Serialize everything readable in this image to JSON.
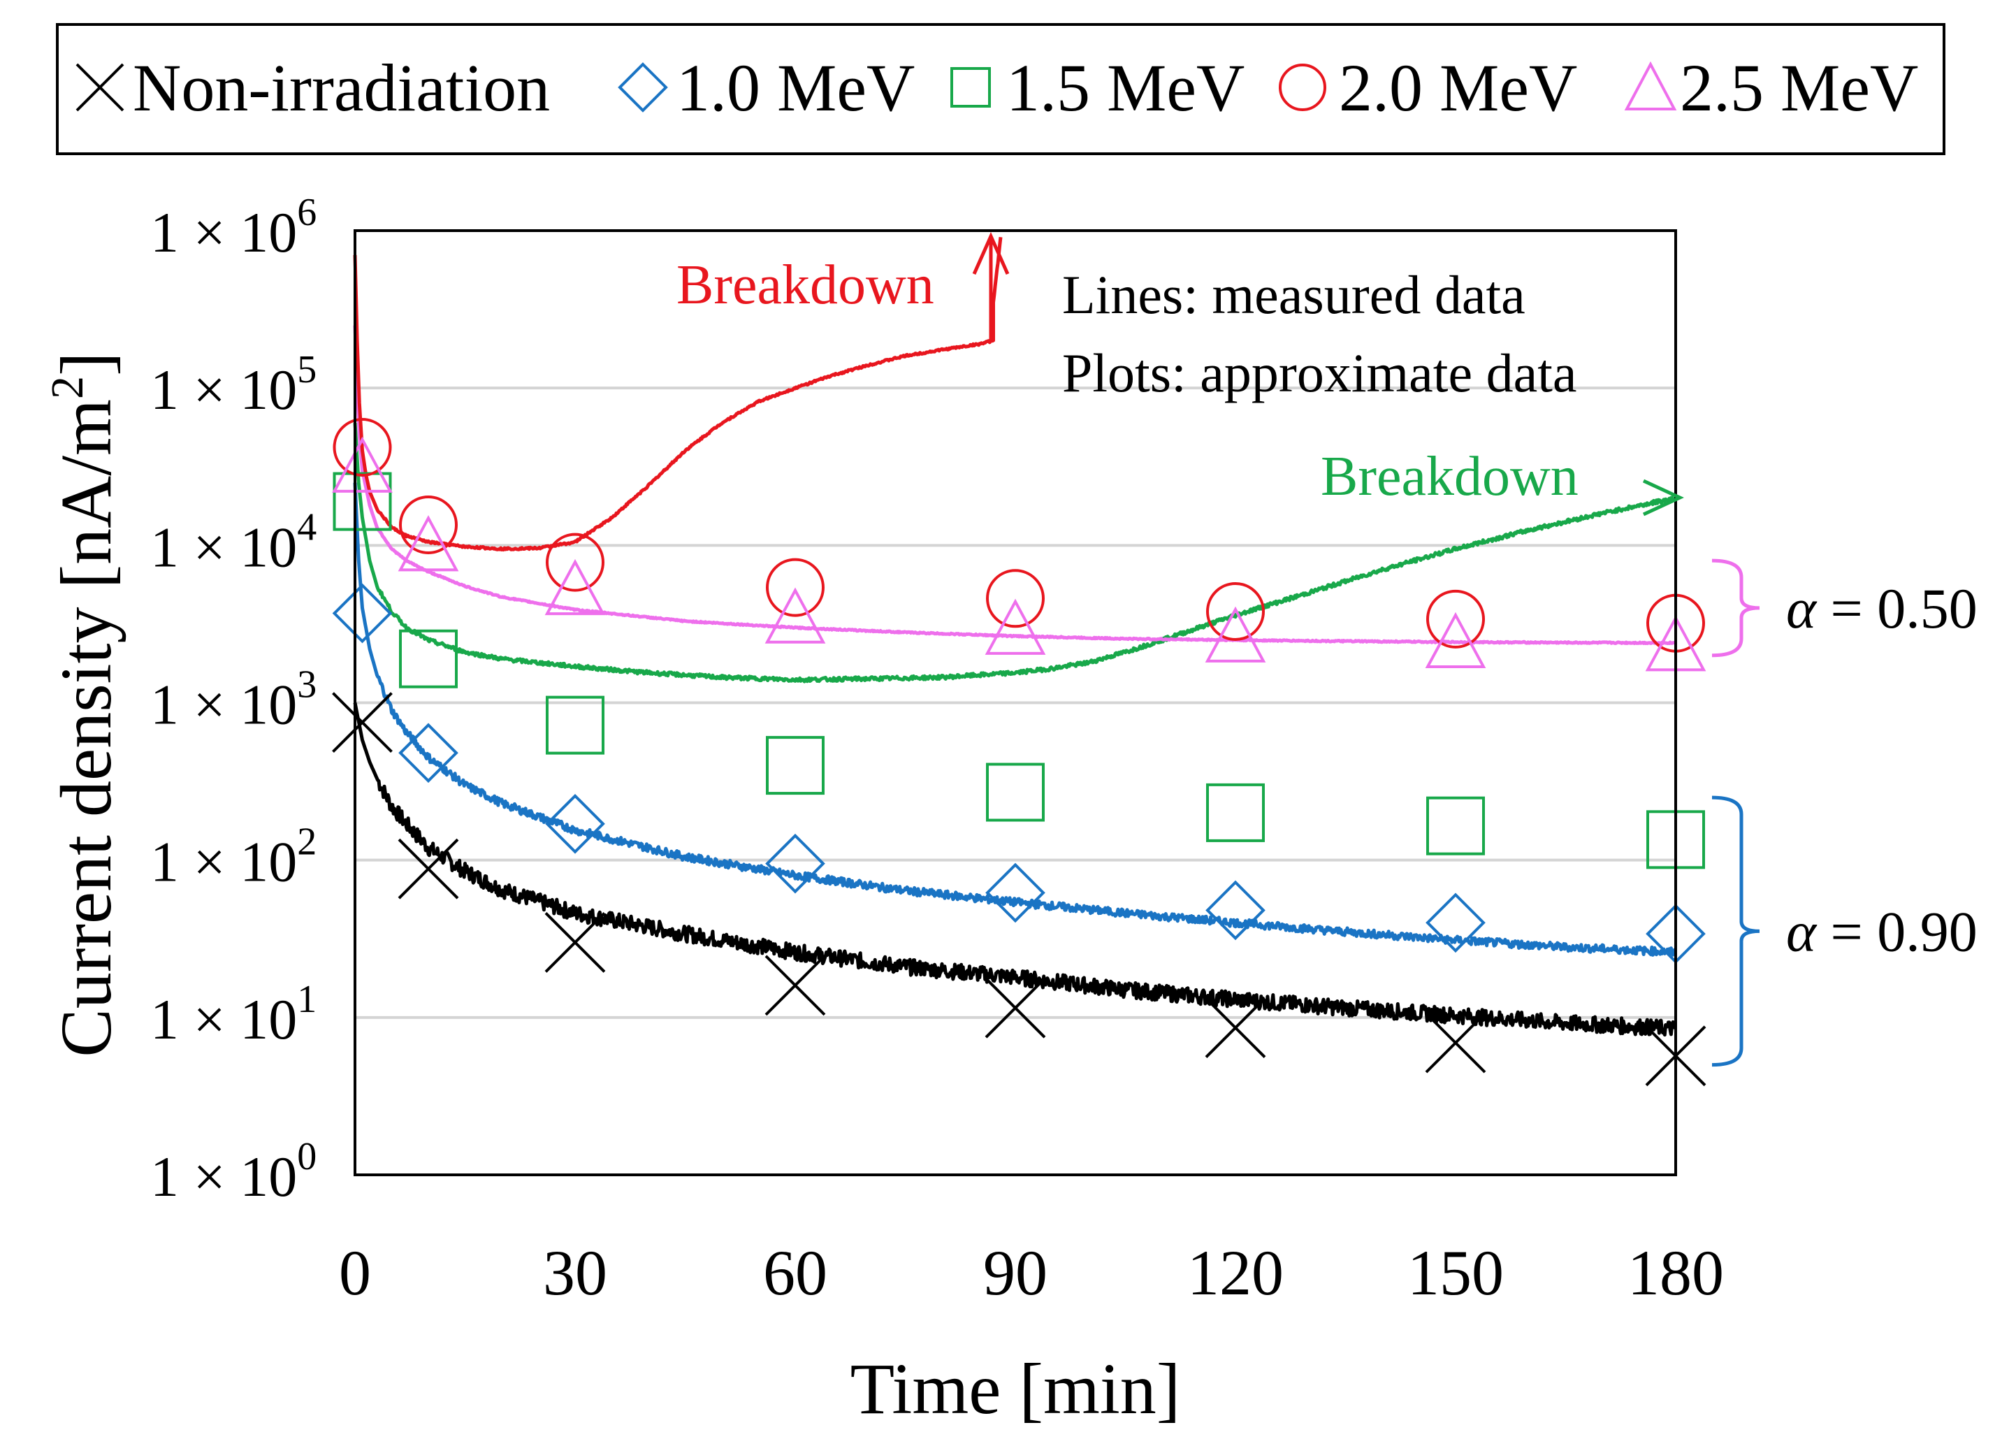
{
  "chart_data": {
    "type": "line",
    "title": "",
    "xlabel": "Time [min]",
    "ylabel_prefix": "Current density [nA/m",
    "ylabel_sup": "2",
    "ylabel_suffix": "]",
    "xlim": [
      0,
      180
    ],
    "ylim": [
      1,
      1000000
    ],
    "yscale": "log",
    "x_ticks": [
      0,
      30,
      60,
      90,
      120,
      150,
      180
    ],
    "x_tick_labels": [
      "0",
      "30",
      "60",
      "90",
      "120",
      "150",
      "180"
    ],
    "y_tick_exponents": [
      0,
      1,
      2,
      3,
      4,
      5,
      6
    ],
    "y_tick_base": "1 × 10",
    "y_tick_labels": [
      "1 × 10^0",
      "1 × 10^1",
      "1 × 10^2",
      "1 × 10^3",
      "1 × 10^4",
      "1 × 10^5",
      "1 × 10^6"
    ],
    "grid": "horizontal",
    "legend_position": "top",
    "legend": [
      {
        "label": "Non-irradiation",
        "marker": "cross",
        "color": "#000000"
      },
      {
        "label": "1.0 MeV",
        "marker": "diamond",
        "color": "#1a74c4"
      },
      {
        "label": "1.5 MeV",
        "marker": "square",
        "color": "#18a84a"
      },
      {
        "label": "2.0 MeV",
        "marker": "circle",
        "color": "#e8161e"
      },
      {
        "label": "2.5 MeV",
        "marker": "triangle",
        "color": "#ee6fec"
      }
    ],
    "series": [
      {
        "name": "Non-irradiation",
        "color": "#000000",
        "marker": "cross",
        "noise": 0.05,
        "line_x": [
          0,
          0.5,
          1,
          2,
          3,
          5,
          7,
          10,
          15,
          20,
          30,
          45,
          60,
          75,
          90,
          105,
          120,
          135,
          150,
          165,
          180
        ],
        "line_y": [
          1000,
          760,
          580,
          420,
          330,
          220,
          170,
          120,
          85,
          65,
          46,
          34,
          26,
          21,
          18,
          15,
          13,
          11.5,
          10.3,
          9.2,
          8.5
        ],
        "plot_x": [
          1,
          10,
          30,
          60,
          90,
          120,
          150,
          180
        ],
        "plot_y": [
          750,
          88,
          30,
          16,
          11.5,
          8.6,
          6.9,
          5.7
        ]
      },
      {
        "name": "1.0 MeV",
        "color": "#1a74c4",
        "marker": "diamond",
        "noise": 0.025,
        "line_x": [
          0,
          0.5,
          1,
          2,
          3,
          5,
          7,
          10,
          15,
          20,
          30,
          45,
          60,
          75,
          90,
          105,
          120,
          135,
          150,
          165,
          180
        ],
        "line_y": [
          25000,
          8000,
          4000,
          2200,
          1500,
          900,
          650,
          450,
          300,
          230,
          155,
          105,
          80,
          64,
          54,
          46,
          40,
          35,
          31,
          28,
          26
        ],
        "plot_x": [
          1,
          10,
          30,
          60,
          90,
          120,
          150,
          180
        ],
        "plot_y": [
          3700,
          480,
          170,
          95,
          62,
          48,
          40,
          34
        ]
      },
      {
        "name": "1.5 MeV",
        "color": "#18a84a",
        "marker": "square",
        "noise": 0.012,
        "annotation": "Breakdown",
        "line_x": [
          0,
          0.5,
          1,
          2,
          3,
          5,
          7,
          10,
          15,
          20,
          30,
          40,
          50,
          60,
          70,
          80,
          90,
          95,
          100,
          105,
          110,
          115,
          120,
          130,
          140,
          150,
          160,
          170,
          180
        ],
        "line_y": [
          60000,
          25000,
          15000,
          8000,
          5500,
          3800,
          3000,
          2500,
          2100,
          1900,
          1700,
          1550,
          1450,
          1400,
          1420,
          1450,
          1550,
          1650,
          1800,
          2100,
          2500,
          3000,
          3600,
          5000,
          7000,
          9500,
          12500,
          16000,
          20000
        ],
        "plot_x": [
          1,
          10,
          30,
          60,
          90,
          120,
          150,
          180
        ],
        "plot_y": [
          19000,
          1900,
          720,
          400,
          270,
          200,
          165,
          135
        ]
      },
      {
        "name": "2.0 MeV",
        "color": "#e8161e",
        "marker": "circle",
        "noise": 0.006,
        "annotation": "Breakdown",
        "line_x": [
          0,
          0.3,
          0.6,
          1,
          1.5,
          2,
          3,
          5,
          7,
          10,
          15,
          20,
          25,
          30,
          35,
          40,
          45,
          50,
          55,
          60,
          65,
          70,
          75,
          80,
          85,
          87,
          87,
          88
        ],
        "line_y": [
          700000,
          200000,
          80000,
          40000,
          28000,
          22000,
          17000,
          13000,
          11500,
          10500,
          9800,
          9500,
          9600,
          10500,
          15000,
          24000,
          40000,
          60000,
          82000,
          100000,
          120000,
          140000,
          160000,
          175000,
          190000,
          200000,
          350000,
          900000
        ],
        "plot_x": [
          1,
          10,
          30,
          60,
          90,
          120,
          150,
          180
        ],
        "plot_y": [
          42000,
          13500,
          7800,
          5400,
          4600,
          3800,
          3400,
          3200
        ]
      },
      {
        "name": "2.5 MeV",
        "color": "#ee6fec",
        "marker": "triangle",
        "noise": 0.004,
        "line_x": [
          0,
          0.3,
          0.6,
          1,
          2,
          3,
          5,
          7,
          10,
          15,
          20,
          30,
          45,
          60,
          75,
          90,
          105,
          120,
          135,
          150,
          165,
          180
        ],
        "line_y": [
          250000,
          100000,
          50000,
          30000,
          18000,
          13000,
          9500,
          8000,
          6800,
          5500,
          4700,
          3900,
          3300,
          3000,
          2800,
          2650,
          2550,
          2500,
          2460,
          2430,
          2410,
          2400
        ],
        "plot_x": [
          1,
          10,
          30,
          60,
          90,
          120,
          150,
          180
        ],
        "plot_y": [
          30000,
          9500,
          5000,
          3300,
          2800,
          2500,
          2300,
          2200
        ]
      }
    ],
    "annotations": {
      "breakdown_label": "Breakdown",
      "lines_note": "Lines: measured data",
      "plots_note": "Plots: approximate data",
      "alpha_upper_symbol": "α",
      "alpha_upper_value": " = 0.50",
      "alpha_lower_symbol": "α",
      "alpha_lower_value": " = 0.90",
      "alpha_upper_range": [
        2000,
        8000
      ],
      "alpha_lower_range": [
        5,
        250
      ]
    }
  }
}
